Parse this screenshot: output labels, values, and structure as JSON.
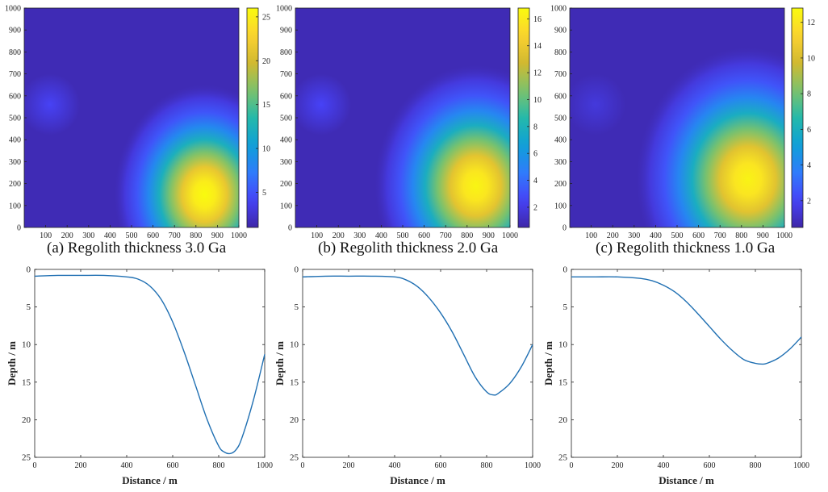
{
  "colors": {
    "line": "#1f6fb2",
    "axis": "#222222",
    "cmap": [
      "#3e26a8",
      "#4743f8",
      "#2f7cfb",
      "#0fa0d8",
      "#25b9aa",
      "#7cc26c",
      "#d1b930",
      "#fbd230",
      "#f9fb0e"
    ]
  },
  "captions": {
    "a": "(a) Regolith thickness 3.0 Ga",
    "b": "(b) Regolith thickness 2.0 Ga",
    "c": "(c) Regolith thickness 1.0 Ga"
  },
  "chart_data": [
    {
      "type": "heatmap",
      "title": "(a) Regolith thickness 3.0 Ga",
      "x_range": [
        0,
        1000
      ],
      "y_range": [
        0,
        1000
      ],
      "x_ticks": [
        100,
        200,
        300,
        400,
        500,
        600,
        700,
        800,
        900,
        1000
      ],
      "y_ticks": [
        0,
        100,
        200,
        300,
        400,
        500,
        600,
        700,
        800,
        900,
        1000
      ],
      "colorbar": {
        "range": [
          1,
          26
        ],
        "ticks": [
          5,
          10,
          15,
          20,
          25
        ]
      },
      "peak": {
        "x": 840,
        "y": 150,
        "value": 26
      },
      "secondary": {
        "x": 120,
        "y": 560,
        "value": 4
      }
    },
    {
      "type": "heatmap",
      "title": "(b) Regolith thickness 2.0 Ga",
      "x_range": [
        0,
        1000
      ],
      "y_range": [
        0,
        1000
      ],
      "x_ticks": [
        100,
        200,
        300,
        400,
        500,
        600,
        700,
        800,
        900,
        1000
      ],
      "y_ticks": [
        0,
        100,
        200,
        300,
        400,
        500,
        600,
        700,
        800,
        900,
        1000
      ],
      "colorbar": {
        "range": [
          0.5,
          16.8
        ],
        "ticks": [
          2,
          4,
          6,
          8,
          10,
          12,
          14,
          16
        ]
      },
      "peak": {
        "x": 840,
        "y": 190,
        "value": 16.5
      },
      "secondary": {
        "x": 120,
        "y": 560,
        "value": 2.5
      }
    },
    {
      "type": "heatmap",
      "title": "(c) Regolith thickness 1.0 Ga",
      "x_range": [
        0,
        1000
      ],
      "y_range": [
        0,
        1000
      ],
      "x_ticks": [
        100,
        200,
        300,
        400,
        500,
        600,
        700,
        800,
        900,
        1000
      ],
      "y_ticks": [
        0,
        100,
        200,
        300,
        400,
        500,
        600,
        700,
        800,
        900,
        1000
      ],
      "colorbar": {
        "range": [
          0.5,
          12.8
        ],
        "ticks": [
          2,
          4,
          6,
          8,
          10,
          12
        ]
      },
      "peak": {
        "x": 830,
        "y": 220,
        "value": 12.5
      },
      "secondary": {
        "x": 120,
        "y": 560,
        "value": 1.5
      }
    },
    {
      "type": "line",
      "xlabel": "Distance / m",
      "ylabel": "Depth / m",
      "xlim": [
        0,
        1000
      ],
      "ylim": [
        0,
        25
      ],
      "y_inverted": true,
      "x_ticks": [
        0,
        200,
        400,
        600,
        800,
        1000
      ],
      "y_ticks": [
        0,
        5,
        10,
        15,
        20,
        25
      ],
      "series": [
        {
          "name": "depth",
          "x": [
            0,
            100,
            200,
            300,
            400,
            450,
            500,
            550,
            600,
            650,
            700,
            750,
            800,
            825,
            850,
            875,
            900,
            950,
            1000
          ],
          "y": [
            0.9,
            0.8,
            0.8,
            0.8,
            1.0,
            1.3,
            2.2,
            4.0,
            7.0,
            11.0,
            15.5,
            20.0,
            23.5,
            24.3,
            24.5,
            24.0,
            22.5,
            17.5,
            11.3
          ]
        }
      ]
    },
    {
      "type": "line",
      "xlabel": "Distance / m",
      "ylabel": "Depth / m",
      "xlim": [
        0,
        1000
      ],
      "ylim": [
        0,
        25
      ],
      "y_inverted": true,
      "x_ticks": [
        0,
        200,
        400,
        600,
        800,
        1000
      ],
      "y_ticks": [
        0,
        5,
        10,
        15,
        20,
        25
      ],
      "series": [
        {
          "name": "depth",
          "x": [
            0,
            100,
            200,
            300,
            400,
            450,
            500,
            550,
            600,
            650,
            700,
            750,
            800,
            830,
            850,
            900,
            950,
            1000
          ],
          "y": [
            1.0,
            0.9,
            0.9,
            0.9,
            1.0,
            1.4,
            2.3,
            3.8,
            5.8,
            8.3,
            11.3,
            14.3,
            16.3,
            16.7,
            16.5,
            15.2,
            13.0,
            10.0
          ]
        }
      ]
    },
    {
      "type": "line",
      "xlabel": "Distance / m",
      "ylabel": "Depth / m",
      "xlim": [
        0,
        1000
      ],
      "ylim": [
        0,
        25
      ],
      "y_inverted": true,
      "x_ticks": [
        0,
        200,
        400,
        600,
        800,
        1000
      ],
      "y_ticks": [
        0,
        5,
        10,
        15,
        20,
        25
      ],
      "series": [
        {
          "name": "depth",
          "x": [
            0,
            100,
            200,
            300,
            350,
            400,
            450,
            500,
            550,
            600,
            650,
            700,
            750,
            800,
            830,
            850,
            900,
            950,
            1000
          ],
          "y": [
            1.0,
            1.0,
            1.0,
            1.2,
            1.5,
            2.1,
            3.0,
            4.3,
            5.9,
            7.6,
            9.3,
            10.8,
            12.0,
            12.5,
            12.6,
            12.5,
            11.8,
            10.6,
            9.0
          ]
        }
      ]
    }
  ]
}
